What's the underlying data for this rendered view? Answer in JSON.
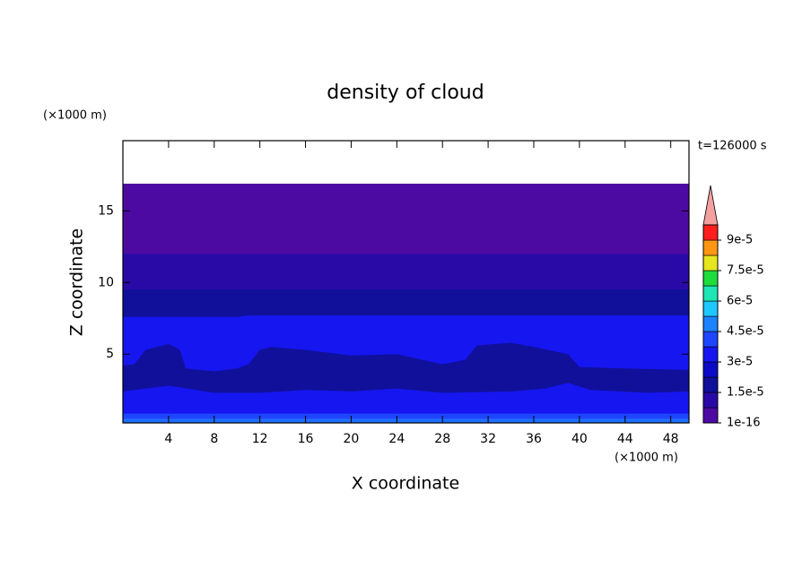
{
  "chart_data": {
    "type": "contour",
    "title": "density of cloud",
    "x_label": "X coordinate",
    "y_label": "Z coordinate",
    "x_unit": "(×1000 m)",
    "y_unit": "(×1000 m)",
    "time_label": "t=126000 s",
    "xlim": [
      0,
      49.6
    ],
    "ylim": [
      0.2,
      19.9
    ],
    "xticks": [
      4,
      8,
      12,
      16,
      20,
      24,
      28,
      32,
      36,
      40,
      44,
      48
    ],
    "yticks": [
      5,
      10,
      15
    ],
    "layers": [
      {
        "color": "#4d0aa3",
        "x": [
          0,
          49.6
        ],
        "z": [
          16.9,
          16.9
        ]
      },
      {
        "color": "#2a0aa6",
        "x": [
          0,
          49.6
        ],
        "z": [
          12.0,
          12.0
        ]
      },
      {
        "color": "#10109a",
        "x": [
          0,
          49.6
        ],
        "z": [
          9.5,
          9.5
        ]
      },
      {
        "color": "#1616f0",
        "x": [
          0,
          10,
          11,
          49.6
        ],
        "z": [
          7.6,
          7.6,
          7.7,
          7.7
        ]
      },
      {
        "color": "#10109a",
        "x": [
          0,
          1,
          2,
          4,
          5,
          5.5,
          8,
          10,
          11,
          12,
          13,
          16,
          20,
          24,
          28,
          30,
          31,
          34,
          36,
          39,
          40,
          44,
          49.6
        ],
        "z": [
          4.2,
          4.3,
          5.3,
          5.7,
          5.3,
          4.0,
          3.8,
          4.0,
          4.3,
          5.3,
          5.5,
          5.3,
          4.9,
          5.0,
          4.3,
          4.6,
          5.6,
          5.8,
          5.5,
          5.0,
          4.1,
          4.0,
          3.9
        ]
      },
      {
        "color": "#1616f0",
        "x": [
          0,
          4,
          8,
          12,
          16,
          20,
          24,
          28,
          34,
          37,
          39,
          41,
          46,
          49.6
        ],
        "z": [
          2.4,
          2.8,
          2.3,
          2.3,
          2.5,
          2.4,
          2.6,
          2.3,
          2.4,
          2.6,
          3.0,
          2.5,
          2.3,
          2.4
        ]
      },
      {
        "color": "#1e46ff",
        "x": [
          0,
          49.6
        ],
        "z": [
          0.85,
          0.85
        ]
      },
      {
        "color": "#1e6eff",
        "x": [
          0,
          49.6
        ],
        "z": [
          0.5,
          0.5
        ]
      }
    ],
    "colorbar": {
      "clim": [
        0,
        9.75e-05
      ],
      "colors": [
        "#4d0aa3",
        "#2a0aa6",
        "#10109a",
        "#0c0cc8",
        "#1616f0",
        "#1e46ff",
        "#1e82ff",
        "#1ec8ff",
        "#1ee6b4",
        "#1edc3c",
        "#e6e61e",
        "#ff9614",
        "#ff1e1e"
      ],
      "extend_color": "#f4a0a0",
      "ticks": [
        {
          "value": 1e-16,
          "label": "1e-16"
        },
        {
          "value": 1.5e-05,
          "label": "1.5e-5"
        },
        {
          "value": 3e-05,
          "label": "3e-5"
        },
        {
          "value": 4.5e-05,
          "label": "4.5e-5"
        },
        {
          "value": 6e-05,
          "label": "6e-5"
        },
        {
          "value": 7.5e-05,
          "label": "7.5e-5"
        },
        {
          "value": 9e-05,
          "label": "9e-5"
        }
      ]
    }
  }
}
